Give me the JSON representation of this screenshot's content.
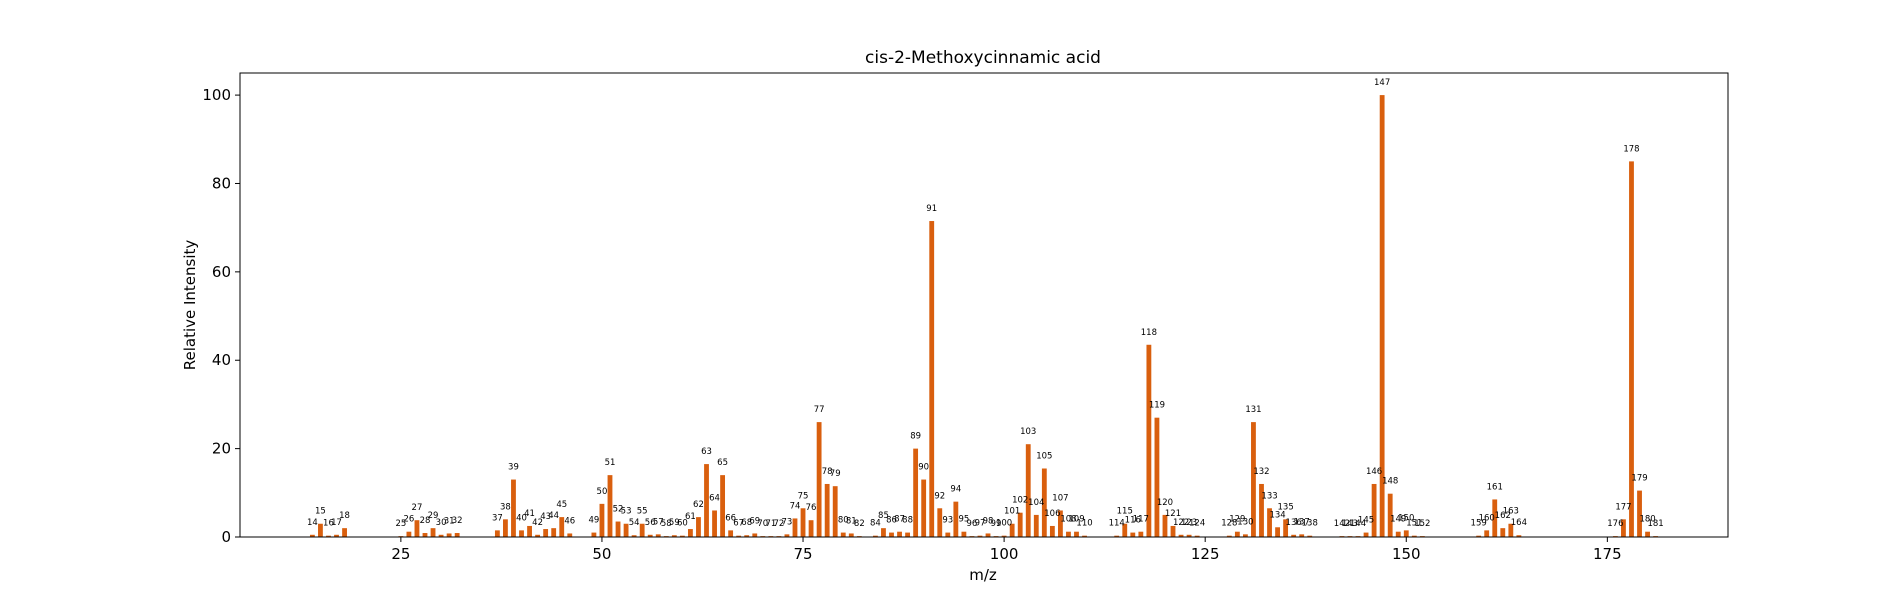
{
  "chart_data": {
    "type": "bar",
    "title": "cis-2-Methoxycinnamic acid",
    "xlabel": "m/z",
    "ylabel": "Relative Intensity",
    "xlim": [
      5,
      190
    ],
    "ylim": [
      0,
      105
    ],
    "xticks": [
      25,
      50,
      75,
      100,
      125,
      150,
      175
    ],
    "yticks": [
      0,
      20,
      40,
      60,
      80,
      100
    ],
    "grid": false,
    "bar_color": "#d95f0e",
    "x": [
      14,
      15,
      16,
      17,
      18,
      25,
      26,
      27,
      28,
      29,
      30,
      31,
      32,
      37,
      38,
      39,
      40,
      41,
      42,
      43,
      44,
      45,
      46,
      49,
      50,
      51,
      52,
      53,
      54,
      55,
      56,
      57,
      58,
      59,
      60,
      61,
      62,
      63,
      64,
      65,
      66,
      67,
      68,
      69,
      70,
      71,
      72,
      73,
      74,
      75,
      76,
      77,
      78,
      79,
      80,
      81,
      82,
      84,
      85,
      86,
      87,
      88,
      89,
      90,
      91,
      92,
      93,
      94,
      95,
      96,
      97,
      98,
      99,
      100,
      101,
      102,
      103,
      104,
      105,
      106,
      107,
      108,
      109,
      110,
      114,
      115,
      116,
      117,
      118,
      119,
      120,
      121,
      122,
      123,
      124,
      128,
      129,
      130,
      131,
      132,
      133,
      134,
      135,
      136,
      137,
      138,
      142,
      143,
      144,
      145,
      146,
      147,
      148,
      149,
      150,
      151,
      152,
      159,
      160,
      161,
      162,
      163,
      164,
      176,
      177,
      178,
      179,
      180,
      181
    ],
    "values": [
      0.5,
      3,
      0.3,
      0.5,
      2,
      0.2,
      1.2,
      3.8,
      0.9,
      2,
      0.5,
      0.8,
      0.9,
      1.5,
      4,
      13,
      1.5,
      2.5,
      0.5,
      1.8,
      2,
      4.5,
      0.8,
      1,
      7.5,
      14,
      3.5,
      3,
      0.4,
      3,
      0.5,
      0.6,
      0.2,
      0.4,
      0.3,
      1.8,
      4.5,
      16.5,
      6,
      14,
      1.5,
      0.3,
      0.4,
      0.8,
      0.2,
      0.2,
      0.2,
      0.6,
      4.2,
      6.5,
      3.8,
      26,
      12,
      11.5,
      1,
      0.8,
      0.2,
      0.3,
      2,
      1,
      1.2,
      1,
      20,
      13,
      71.5,
      6.5,
      1,
      8,
      1.2,
      0.2,
      0.3,
      0.8,
      0.2,
      0.3,
      3,
      5.5,
      21,
      5,
      15.5,
      2.5,
      6,
      1.2,
      1.2,
      0.3,
      0.3,
      3,
      1,
      1.2,
      43.5,
      27,
      5,
      2.5,
      0.5,
      0.5,
      0.3,
      0.3,
      1.2,
      0.6,
      26,
      12,
      6.5,
      2.2,
      4,
      0.5,
      0.6,
      0.3,
      0.2,
      0.2,
      0.2,
      1,
      12,
      100,
      9.8,
      1.2,
      1.5,
      0.3,
      0.2,
      0.3,
      1.5,
      8.5,
      2,
      3,
      0.4,
      0.2,
      4,
      85,
      10.5,
      1.2,
      0.2
    ]
  }
}
